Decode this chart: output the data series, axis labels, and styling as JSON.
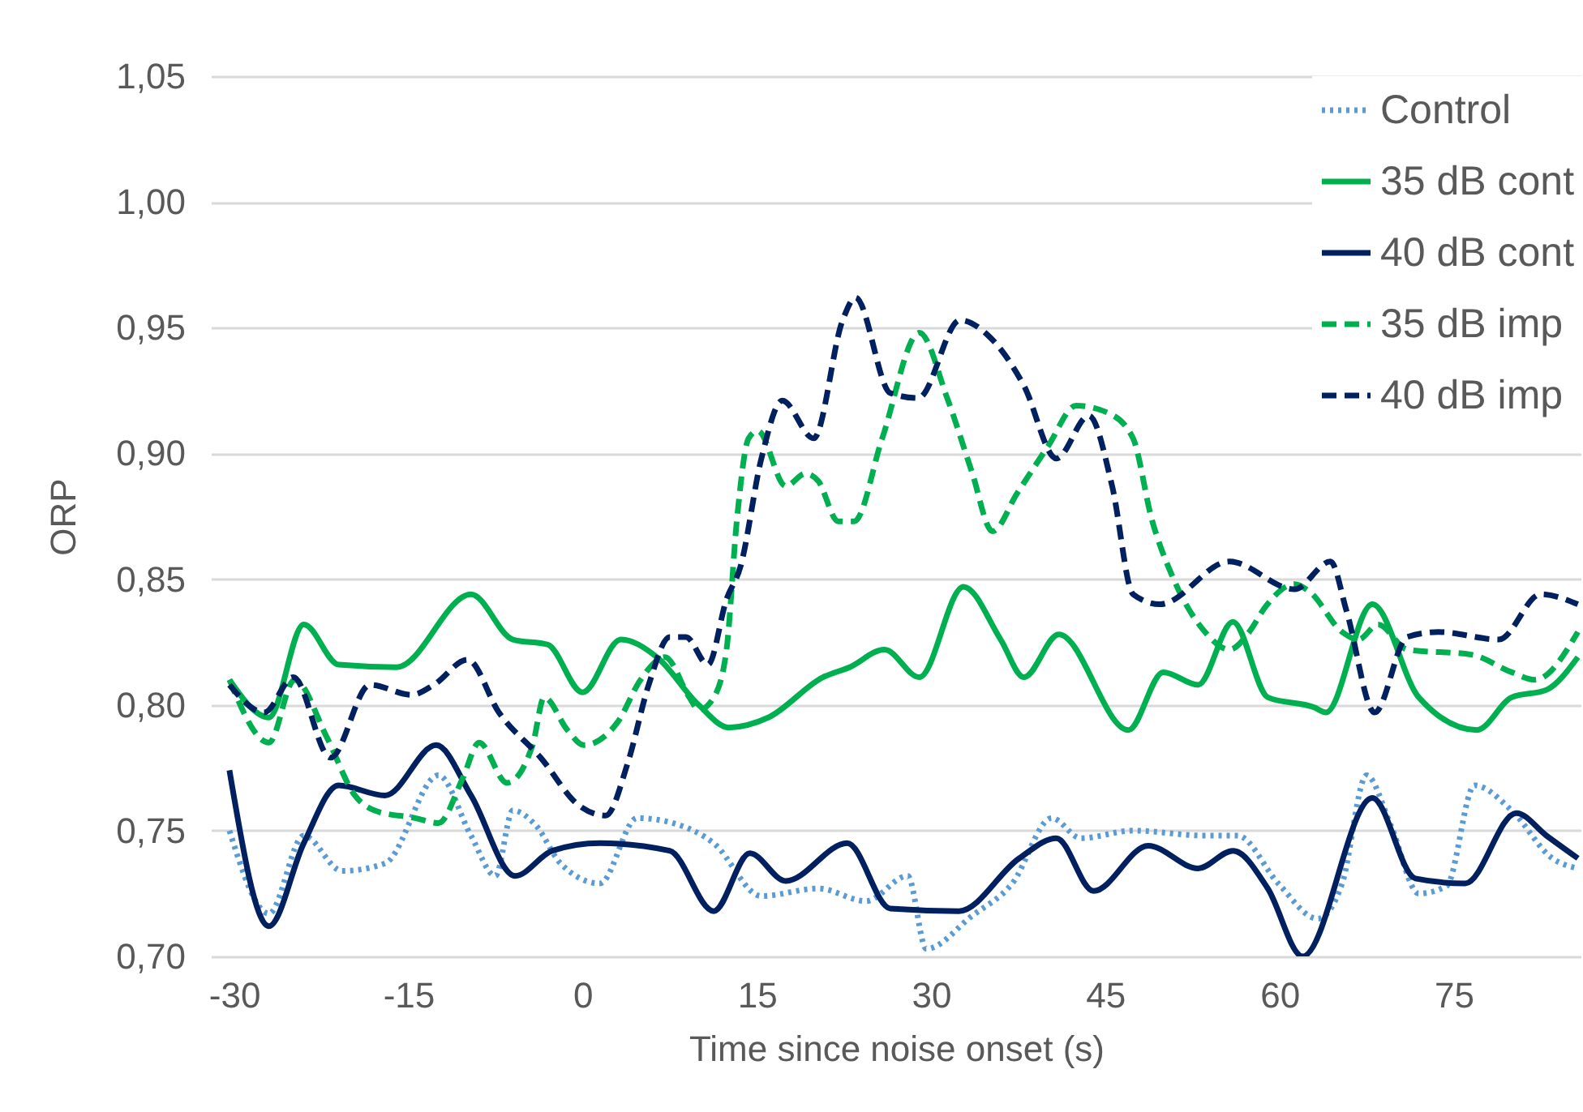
{
  "chart_data": {
    "type": "line",
    "xlabel": "Time since noise onset (s)",
    "ylabel": "ORP",
    "xlim": [
      -32,
      86
    ],
    "ylim": [
      0.7,
      1.05
    ],
    "xticks": [
      -30,
      -15,
      0,
      15,
      30,
      45,
      60,
      75
    ],
    "yticks": [
      {
        "value": 0.7,
        "label": "0,70"
      },
      {
        "value": 0.75,
        "label": "0,75"
      },
      {
        "value": 0.8,
        "label": "0,80"
      },
      {
        "value": 0.85,
        "label": "0,85"
      },
      {
        "value": 0.9,
        "label": "0,90"
      },
      {
        "value": 0.95,
        "label": "0,95"
      },
      {
        "value": 1.0,
        "label": "1,00"
      },
      {
        "value": 1.05,
        "label": "1,05"
      }
    ],
    "grid": "y",
    "legend": "top right",
    "marker": "none",
    "series": [
      {
        "name": "Control",
        "color": "#5b9bd5",
        "line_style": "dotted",
        "x": [
          -30.4,
          -27,
          -24,
          -20.7,
          -17,
          -12.4,
          -9.6,
          -7.5,
          -6,
          -4,
          -1.9,
          1.5,
          4.7,
          7.8,
          11.3,
          15.4,
          20.3,
          24.4,
          28,
          29.6,
          33.5,
          37,
          40.4,
          42.9,
          47.4,
          53.6,
          56.4,
          59.9,
          63.3,
          65.4,
          67.5,
          69.6,
          72,
          74.4,
          76.8,
          80,
          83.5,
          85.7
        ],
        "values": [
          0.75,
          0.717,
          0.748,
          0.734,
          0.737,
          0.772,
          0.748,
          0.732,
          0.758,
          0.752,
          0.737,
          0.729,
          0.755,
          0.753,
          0.745,
          0.724,
          0.727,
          0.722,
          0.732,
          0.703,
          0.716,
          0.729,
          0.755,
          0.747,
          0.75,
          0.748,
          0.748,
          0.729,
          0.715,
          0.729,
          0.772,
          0.752,
          0.725,
          0.728,
          0.768,
          0.758,
          0.739,
          0.735
        ]
      },
      {
        "name": "35 dB cont",
        "color": "#00b050",
        "line_style": "solid",
        "x": [
          -30.4,
          -27,
          -24,
          -21,
          -16,
          -9.6,
          -6,
          -3,
          0,
          3.3,
          6.4,
          10,
          12.6,
          16,
          20.7,
          23,
          26,
          29,
          32.8,
          36,
          38,
          41,
          47,
          50,
          53,
          56,
          59,
          63,
          64,
          68,
          72,
          77,
          80,
          83,
          85.7
        ],
        "values": [
          0.81,
          0.795,
          0.832,
          0.816,
          0.815,
          0.844,
          0.826,
          0.824,
          0.805,
          0.826,
          0.819,
          0.8,
          0.791,
          0.795,
          0.811,
          0.815,
          0.822,
          0.811,
          0.847,
          0.826,
          0.811,
          0.828,
          0.79,
          0.813,
          0.808,
          0.833,
          0.803,
          0.799,
          0.797,
          0.84,
          0.803,
          0.79,
          0.803,
          0.806,
          0.819
        ]
      },
      {
        "name": "40 dB cont",
        "color": "#002060",
        "line_style": "solid",
        "x": [
          -30.4,
          -27,
          -24,
          -21,
          -17,
          -12.6,
          -9.6,
          -5.8,
          -2.6,
          1.5,
          7.5,
          11.3,
          14.4,
          17.5,
          22.8,
          26.5,
          32.4,
          37.6,
          40.8,
          44,
          48.7,
          53,
          56,
          59,
          62,
          68,
          71.7,
          76,
          80.4,
          83,
          85.7
        ],
        "values": [
          0.774,
          0.712,
          0.745,
          0.768,
          0.764,
          0.784,
          0.764,
          0.732,
          0.742,
          0.745,
          0.742,
          0.718,
          0.741,
          0.73,
          0.745,
          0.719,
          0.718,
          0.739,
          0.747,
          0.726,
          0.744,
          0.735,
          0.742,
          0.727,
          0.7,
          0.763,
          0.731,
          0.729,
          0.757,
          0.748,
          0.739
        ]
      },
      {
        "name": "35 dB imp",
        "color": "#00b050",
        "line_style": "dashed",
        "x": [
          -30.4,
          -27,
          -24.8,
          -22,
          -19.6,
          -17.9,
          -14.4,
          -12.4,
          -10.3,
          -8.9,
          -6.5,
          -4.3,
          -3.3,
          -1.3,
          0.1,
          3,
          5,
          7.1,
          9.2,
          10,
          11.3,
          12.4,
          13.3,
          14.3,
          15.1,
          17.5,
          19.2,
          20.3,
          22,
          23.4,
          25.8,
          29,
          31.4,
          33.5,
          35.3,
          37.4,
          40.1,
          42.5,
          45.3,
          47.4,
          49,
          50.8,
          53.6,
          55.7,
          57.4,
          58.8,
          61.3,
          62.6,
          65.4,
          66.8,
          68.5,
          71,
          76.5,
          80,
          82,
          85.7
        ],
        "values": [
          0.81,
          0.785,
          0.81,
          0.787,
          0.764,
          0.758,
          0.755,
          0.753,
          0.771,
          0.785,
          0.769,
          0.784,
          0.803,
          0.79,
          0.784,
          0.793,
          0.81,
          0.819,
          0.803,
          0.798,
          0.803,
          0.822,
          0.874,
          0.906,
          0.909,
          0.887,
          0.892,
          0.889,
          0.873,
          0.873,
          0.906,
          0.948,
          0.922,
          0.893,
          0.869,
          0.884,
          0.903,
          0.919,
          0.916,
          0.906,
          0.874,
          0.851,
          0.829,
          0.822,
          0.829,
          0.839,
          0.848,
          0.845,
          0.829,
          0.826,
          0.832,
          0.822,
          0.82,
          0.813,
          0.81,
          0.829
        ]
      },
      {
        "name": "40 dB imp",
        "color": "#002060",
        "line_style": "dashed",
        "x": [
          -30.4,
          -27.4,
          -24.9,
          -21.7,
          -18.3,
          -14.7,
          -12.8,
          -9.9,
          -7.2,
          -3.6,
          -0.3,
          2,
          3.9,
          5.7,
          7.5,
          8.9,
          10.8,
          12.4,
          13.6,
          15.4,
          17.2,
          19.9,
          22.4,
          23.5,
          26.5,
          28.9,
          32.5,
          34.9,
          38,
          40.8,
          43.6,
          45.6,
          47.4,
          49.7,
          55.7,
          61.3,
          64.4,
          65.8,
          68.2,
          71,
          73.7,
          78.9,
          82.5,
          85.7
        ],
        "values": [
          0.808,
          0.797,
          0.811,
          0.779,
          0.808,
          0.804,
          0.808,
          0.818,
          0.797,
          0.779,
          0.76,
          0.756,
          0.777,
          0.808,
          0.827,
          0.827,
          0.816,
          0.842,
          0.855,
          0.898,
          0.921,
          0.906,
          0.953,
          0.962,
          0.924,
          0.922,
          0.953,
          0.947,
          0.927,
          0.898,
          0.915,
          0.887,
          0.844,
          0.84,
          0.857,
          0.846,
          0.857,
          0.837,
          0.797,
          0.827,
          0.829,
          0.826,
          0.844,
          0.84
        ]
      }
    ]
  }
}
